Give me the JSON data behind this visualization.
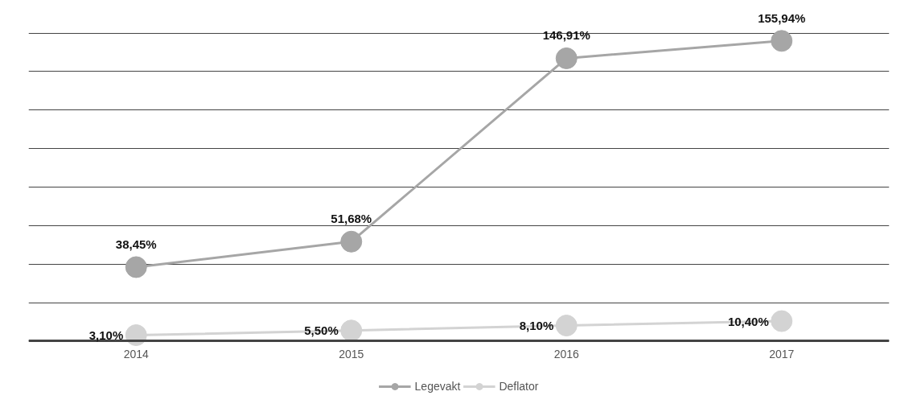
{
  "chart_data": {
    "type": "line",
    "categories": [
      "2014",
      "2015",
      "2016",
      "2017"
    ],
    "series": [
      {
        "name": "Legevakt",
        "color": "#a6a6a6",
        "values": [
          38.45,
          51.68,
          146.91,
          155.94
        ],
        "value_labels": [
          "38,45%",
          "51,68%",
          "146,91%",
          "155,94%"
        ]
      },
      {
        "name": "Deflator",
        "color": "#d3d3d3",
        "values": [
          3.1,
          5.5,
          8.1,
          10.4
        ],
        "value_labels": [
          "3,10%",
          "5,50%",
          "8,10%",
          "10,40%"
        ]
      }
    ],
    "yticks": [
      {
        "value": 0,
        "label": null
      },
      {
        "value": 20,
        "label": null
      },
      {
        "value": 40,
        "label": null
      },
      {
        "value": 60,
        "label": null
      },
      {
        "value": 80,
        "label": null
      },
      {
        "value": 100,
        "label": null
      },
      {
        "value": 120,
        "label": null
      },
      {
        "value": 140,
        "label": null
      },
      {
        "value": 160,
        "label": null
      }
    ],
    "grid": "y",
    "legend": "bottom",
    "marker": "circle",
    "line_style": "solid",
    "tick_labels": "x"
  }
}
